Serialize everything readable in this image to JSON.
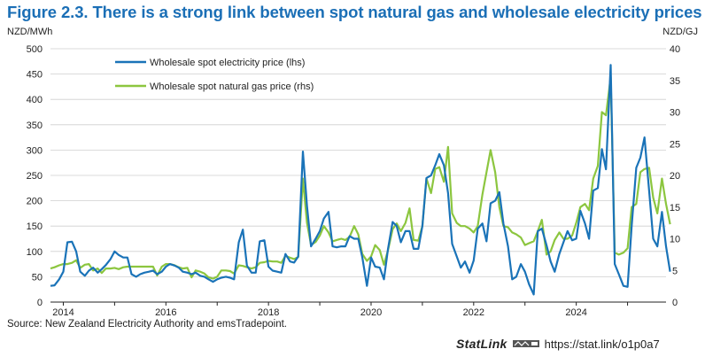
{
  "figure": {
    "title": "Figure 2.3. There is a strong link between spot natural gas and wholesale electricity prices",
    "source": "Source: New Zealand Electricity Authority and emsTradepoint.",
    "statlink_name": "StatLink",
    "statlink_url": "https://stat.link/o1p0a7"
  },
  "colors": {
    "electricity": "#1a73b8",
    "gas": "#8cc63f",
    "title": "#1b6fb6"
  },
  "chart_data": {
    "type": "line",
    "x_unit": "year (decimal)",
    "x_range": [
      2013.75,
      2025.75
    ],
    "x_ticks": [
      2014,
      2016,
      2018,
      2020,
      2022,
      2024
    ],
    "left_axis": {
      "unit_label": "NZD/MWh",
      "range": [
        0,
        500
      ],
      "ticks": [
        0,
        50,
        100,
        150,
        200,
        250,
        300,
        350,
        400,
        450,
        500
      ]
    },
    "right_axis": {
      "unit_label": "NZD/GJ",
      "range": [
        0,
        40
      ],
      "ticks": [
        0,
        5,
        10,
        15,
        20,
        25,
        30,
        35,
        40
      ]
    },
    "grid": "horizontal",
    "legend_position": "top-left",
    "series": [
      {
        "name": "Wholesale spot electricity price (lhs)",
        "axis": "left",
        "color": "#1a73b8",
        "points": [
          [
            2013.75,
            32
          ],
          [
            2013.83,
            33
          ],
          [
            2013.92,
            45
          ],
          [
            2014.0,
            60
          ],
          [
            2014.08,
            118
          ],
          [
            2014.17,
            119
          ],
          [
            2014.25,
            100
          ],
          [
            2014.33,
            60
          ],
          [
            2014.42,
            52
          ],
          [
            2014.5,
            62
          ],
          [
            2014.58,
            68
          ],
          [
            2014.67,
            58
          ],
          [
            2014.75,
            65
          ],
          [
            2014.83,
            73
          ],
          [
            2014.92,
            85
          ],
          [
            2015.0,
            100
          ],
          [
            2015.08,
            93
          ],
          [
            2015.17,
            88
          ],
          [
            2015.25,
            88
          ],
          [
            2015.33,
            55
          ],
          [
            2015.42,
            50
          ],
          [
            2015.5,
            55
          ],
          [
            2015.58,
            58
          ],
          [
            2015.67,
            60
          ],
          [
            2015.75,
            62
          ],
          [
            2015.83,
            55
          ],
          [
            2015.92,
            60
          ],
          [
            2016.0,
            70
          ],
          [
            2016.08,
            75
          ],
          [
            2016.17,
            72
          ],
          [
            2016.25,
            68
          ],
          [
            2016.33,
            60
          ],
          [
            2016.42,
            58
          ],
          [
            2016.5,
            55
          ],
          [
            2016.58,
            58
          ],
          [
            2016.67,
            52
          ],
          [
            2016.75,
            50
          ],
          [
            2016.83,
            45
          ],
          [
            2016.92,
            40
          ],
          [
            2017.0,
            45
          ],
          [
            2017.08,
            48
          ],
          [
            2017.17,
            50
          ],
          [
            2017.25,
            48
          ],
          [
            2017.33,
            45
          ],
          [
            2017.42,
            118
          ],
          [
            2017.5,
            143
          ],
          [
            2017.58,
            72
          ],
          [
            2017.67,
            58
          ],
          [
            2017.75,
            58
          ],
          [
            2017.83,
            120
          ],
          [
            2017.92,
            122
          ],
          [
            2018.0,
            70
          ],
          [
            2018.08,
            62
          ],
          [
            2018.17,
            60
          ],
          [
            2018.25,
            58
          ],
          [
            2018.33,
            95
          ],
          [
            2018.42,
            80
          ],
          [
            2018.5,
            78
          ],
          [
            2018.58,
            90
          ],
          [
            2018.67,
            297
          ],
          [
            2018.75,
            190
          ],
          [
            2018.83,
            110
          ],
          [
            2018.92,
            125
          ],
          [
            2019.0,
            140
          ],
          [
            2019.08,
            165
          ],
          [
            2019.17,
            178
          ],
          [
            2019.25,
            110
          ],
          [
            2019.33,
            108
          ],
          [
            2019.42,
            110
          ],
          [
            2019.5,
            110
          ],
          [
            2019.58,
            130
          ],
          [
            2019.67,
            125
          ],
          [
            2019.75,
            125
          ],
          [
            2019.83,
            88
          ],
          [
            2019.92,
            32
          ],
          [
            2020.0,
            88
          ],
          [
            2020.08,
            70
          ],
          [
            2020.17,
            68
          ],
          [
            2020.25,
            45
          ],
          [
            2020.33,
            105
          ],
          [
            2020.42,
            158
          ],
          [
            2020.5,
            150
          ],
          [
            2020.58,
            118
          ],
          [
            2020.67,
            140
          ],
          [
            2020.75,
            140
          ],
          [
            2020.83,
            105
          ],
          [
            2020.92,
            105
          ],
          [
            2021.0,
            150
          ],
          [
            2021.08,
            245
          ],
          [
            2021.17,
            250
          ],
          [
            2021.25,
            270
          ],
          [
            2021.33,
            292
          ],
          [
            2021.42,
            270
          ],
          [
            2021.5,
            215
          ],
          [
            2021.58,
            115
          ],
          [
            2021.67,
            90
          ],
          [
            2021.75,
            68
          ],
          [
            2021.83,
            80
          ],
          [
            2021.92,
            58
          ],
          [
            2022.0,
            82
          ],
          [
            2022.08,
            145
          ],
          [
            2022.17,
            155
          ],
          [
            2022.25,
            120
          ],
          [
            2022.33,
            195
          ],
          [
            2022.42,
            200
          ],
          [
            2022.5,
            217
          ],
          [
            2022.58,
            155
          ],
          [
            2022.67,
            110
          ],
          [
            2022.75,
            45
          ],
          [
            2022.83,
            50
          ],
          [
            2022.92,
            75
          ],
          [
            2023.0,
            60
          ],
          [
            2023.08,
            35
          ],
          [
            2023.17,
            15
          ],
          [
            2023.25,
            140
          ],
          [
            2023.33,
            145
          ],
          [
            2023.42,
            112
          ],
          [
            2023.5,
            80
          ],
          [
            2023.58,
            60
          ],
          [
            2023.67,
            95
          ],
          [
            2023.75,
            118
          ],
          [
            2023.83,
            140
          ],
          [
            2023.92,
            122
          ],
          [
            2024.0,
            125
          ],
          [
            2024.08,
            180
          ],
          [
            2024.17,
            155
          ],
          [
            2024.25,
            125
          ],
          [
            2024.33,
            220
          ],
          [
            2024.42,
            225
          ],
          [
            2024.5,
            302
          ],
          [
            2024.58,
            262
          ],
          [
            2024.67,
            468
          ],
          [
            2024.75,
            75
          ],
          [
            2024.83,
            55
          ],
          [
            2024.92,
            32
          ],
          [
            2025.0,
            30
          ],
          [
            2025.08,
            150
          ],
          [
            2025.17,
            265
          ],
          [
            2025.25,
            285
          ],
          [
            2025.33,
            325
          ],
          [
            2025.42,
            220
          ],
          [
            2025.5,
            125
          ],
          [
            2025.58,
            110
          ],
          [
            2025.67,
            178
          ],
          [
            2025.75,
            110
          ],
          [
            2025.83,
            60
          ]
        ]
      },
      {
        "name": "Wholesale spot natural gas price (rhs)",
        "axis": "right",
        "color": "#8cc63f",
        "points": [
          [
            2013.75,
            5.3
          ],
          [
            2013.83,
            5.5
          ],
          [
            2013.92,
            5.8
          ],
          [
            2014.0,
            6.0
          ],
          [
            2014.08,
            6.0
          ],
          [
            2014.17,
            6.2
          ],
          [
            2014.25,
            6.6
          ],
          [
            2014.33,
            5.4
          ],
          [
            2014.42,
            5.9
          ],
          [
            2014.5,
            6.0
          ],
          [
            2014.58,
            5.0
          ],
          [
            2014.67,
            5.3
          ],
          [
            2014.75,
            4.6
          ],
          [
            2014.83,
            5.3
          ],
          [
            2014.92,
            5.3
          ],
          [
            2015.0,
            5.4
          ],
          [
            2015.08,
            5.2
          ],
          [
            2015.17,
            5.5
          ],
          [
            2015.25,
            5.6
          ],
          [
            2015.33,
            5.6
          ],
          [
            2015.42,
            5.6
          ],
          [
            2015.5,
            5.6
          ],
          [
            2015.58,
            5.6
          ],
          [
            2015.67,
            5.6
          ],
          [
            2015.75,
            5.6
          ],
          [
            2015.83,
            4.2
          ],
          [
            2015.92,
            5.6
          ],
          [
            2016.0,
            6.0
          ],
          [
            2016.08,
            6.0
          ],
          [
            2016.17,
            5.8
          ],
          [
            2016.25,
            5.5
          ],
          [
            2016.33,
            5.3
          ],
          [
            2016.42,
            5.4
          ],
          [
            2016.5,
            3.9
          ],
          [
            2016.58,
            5.0
          ],
          [
            2016.67,
            4.8
          ],
          [
            2016.75,
            4.5
          ],
          [
            2016.83,
            3.9
          ],
          [
            2016.92,
            3.7
          ],
          [
            2017.0,
            4.0
          ],
          [
            2017.08,
            5.0
          ],
          [
            2017.17,
            5.0
          ],
          [
            2017.25,
            4.9
          ],
          [
            2017.33,
            4.5
          ],
          [
            2017.42,
            5.8
          ],
          [
            2017.5,
            5.7
          ],
          [
            2017.58,
            5.5
          ],
          [
            2017.67,
            5.3
          ],
          [
            2017.75,
            5.5
          ],
          [
            2017.83,
            6.2
          ],
          [
            2017.92,
            6.3
          ],
          [
            2018.0,
            6.5
          ],
          [
            2018.08,
            6.4
          ],
          [
            2018.17,
            6.4
          ],
          [
            2018.25,
            6.2
          ],
          [
            2018.33,
            7.3
          ],
          [
            2018.42,
            7.0
          ],
          [
            2018.5,
            6.8
          ],
          [
            2018.58,
            7.1
          ],
          [
            2018.67,
            19.5
          ],
          [
            2018.75,
            12.5
          ],
          [
            2018.83,
            9.0
          ],
          [
            2018.92,
            9.5
          ],
          [
            2019.0,
            10.5
          ],
          [
            2019.08,
            12.0
          ],
          [
            2019.17,
            11.0
          ],
          [
            2019.25,
            9.6
          ],
          [
            2019.33,
            9.8
          ],
          [
            2019.42,
            10.0
          ],
          [
            2019.5,
            9.8
          ],
          [
            2019.58,
            10.3
          ],
          [
            2019.67,
            12.0
          ],
          [
            2019.75,
            10.7
          ],
          [
            2019.83,
            7.6
          ],
          [
            2019.92,
            6.5
          ],
          [
            2020.0,
            7.2
          ],
          [
            2020.08,
            9.0
          ],
          [
            2020.17,
            8.2
          ],
          [
            2020.25,
            5.9
          ],
          [
            2020.33,
            8.2
          ],
          [
            2020.42,
            11.5
          ],
          [
            2020.5,
            12.4
          ],
          [
            2020.58,
            11.2
          ],
          [
            2020.67,
            12.5
          ],
          [
            2020.75,
            14.8
          ],
          [
            2020.83,
            9.8
          ],
          [
            2020.92,
            9.7
          ],
          [
            2021.0,
            12.0
          ],
          [
            2021.08,
            19.5
          ],
          [
            2021.17,
            17.2
          ],
          [
            2021.25,
            21.0
          ],
          [
            2021.33,
            21.3
          ],
          [
            2021.42,
            19.0
          ],
          [
            2021.5,
            24.5
          ],
          [
            2021.58,
            14.0
          ],
          [
            2021.67,
            12.5
          ],
          [
            2021.75,
            12.0
          ],
          [
            2021.83,
            12.0
          ],
          [
            2021.92,
            11.6
          ],
          [
            2022.0,
            11.0
          ],
          [
            2022.08,
            12.0
          ],
          [
            2022.17,
            17.0
          ],
          [
            2022.25,
            20.5
          ],
          [
            2022.33,
            24.0
          ],
          [
            2022.42,
            20.5
          ],
          [
            2022.5,
            15.0
          ],
          [
            2022.58,
            12.0
          ],
          [
            2022.67,
            11.8
          ],
          [
            2022.75,
            11.0
          ],
          [
            2022.83,
            10.7
          ],
          [
            2022.92,
            10.2
          ],
          [
            2023.0,
            9.0
          ],
          [
            2023.08,
            9.3
          ],
          [
            2023.17,
            9.6
          ],
          [
            2023.25,
            11.2
          ],
          [
            2023.33,
            13.0
          ],
          [
            2023.42,
            7.5
          ],
          [
            2023.5,
            8.0
          ],
          [
            2023.58,
            9.8
          ],
          [
            2023.67,
            11.0
          ],
          [
            2023.75,
            10.0
          ],
          [
            2023.83,
            10.0
          ],
          [
            2023.92,
            10.5
          ],
          [
            2024.0,
            12.5
          ],
          [
            2024.08,
            15.0
          ],
          [
            2024.17,
            15.5
          ],
          [
            2024.25,
            14.5
          ],
          [
            2024.33,
            19.5
          ],
          [
            2024.42,
            21.5
          ],
          [
            2024.5,
            30.0
          ],
          [
            2024.58,
            29.5
          ],
          [
            2024.67,
            35.5
          ],
          [
            2024.75,
            7.8
          ],
          [
            2024.83,
            7.5
          ],
          [
            2024.92,
            7.8
          ],
          [
            2025.0,
            8.5
          ],
          [
            2025.08,
            15.0
          ],
          [
            2025.17,
            15.5
          ],
          [
            2025.25,
            20.5
          ],
          [
            2025.33,
            21.0
          ],
          [
            2025.42,
            21.2
          ],
          [
            2025.5,
            16.5
          ],
          [
            2025.58,
            14.0
          ],
          [
            2025.67,
            19.5
          ],
          [
            2025.75,
            15.5
          ],
          [
            2025.83,
            12.3
          ]
        ]
      }
    ]
  }
}
